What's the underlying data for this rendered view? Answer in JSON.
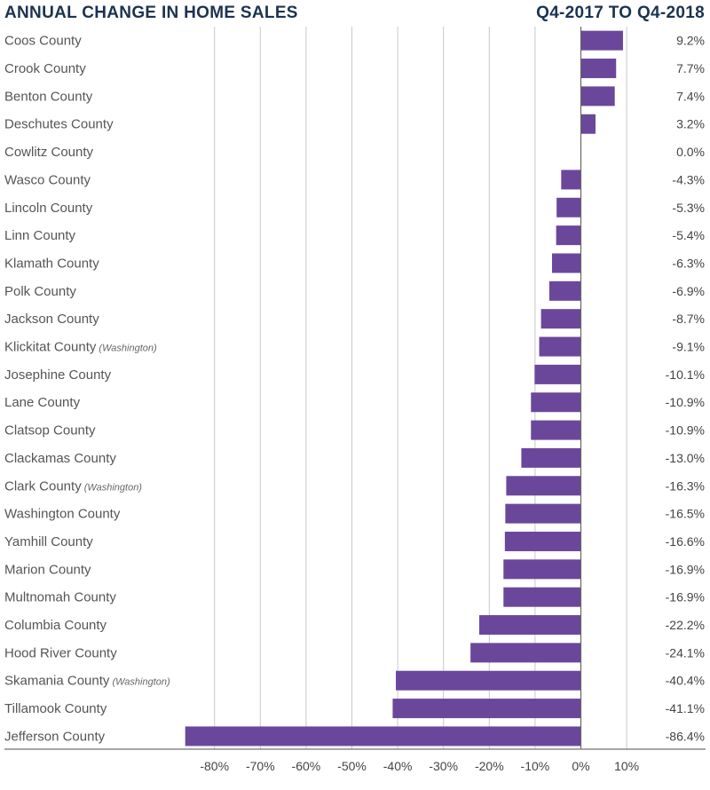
{
  "chart_data": {
    "type": "bar",
    "orientation": "horizontal",
    "title": "ANNUAL CHANGE IN HOME SALES",
    "subtitle": "Q4-2017 TO Q4-2018",
    "categories": [
      {
        "name": "Coos County",
        "note": ""
      },
      {
        "name": "Crook County",
        "note": ""
      },
      {
        "name": "Benton County",
        "note": ""
      },
      {
        "name": "Deschutes County",
        "note": ""
      },
      {
        "name": "Cowlitz County",
        "note": ""
      },
      {
        "name": "Wasco County",
        "note": ""
      },
      {
        "name": "Lincoln County",
        "note": ""
      },
      {
        "name": "Linn County",
        "note": ""
      },
      {
        "name": "Klamath County",
        "note": ""
      },
      {
        "name": "Polk County",
        "note": ""
      },
      {
        "name": "Jackson County",
        "note": ""
      },
      {
        "name": "Klickitat County",
        "note": "(Washington)"
      },
      {
        "name": "Josephine County",
        "note": ""
      },
      {
        "name": "Lane County",
        "note": ""
      },
      {
        "name": "Clatsop County",
        "note": ""
      },
      {
        "name": "Clackamas County",
        "note": ""
      },
      {
        "name": "Clark County",
        "note": "(Washington)"
      },
      {
        "name": "Washington County",
        "note": ""
      },
      {
        "name": "Yamhill County",
        "note": ""
      },
      {
        "name": "Marion County",
        "note": ""
      },
      {
        "name": "Multnomah County",
        "note": ""
      },
      {
        "name": "Columbia County",
        "note": ""
      },
      {
        "name": "Hood River County",
        "note": ""
      },
      {
        "name": "Skamania County",
        "note": "(Washington)"
      },
      {
        "name": "Tillamook County",
        "note": ""
      },
      {
        "name": "Jefferson County",
        "note": ""
      }
    ],
    "values": [
      9.2,
      7.7,
      7.4,
      3.2,
      0.0,
      -4.3,
      -5.3,
      -5.4,
      -6.3,
      -6.9,
      -8.7,
      -9.1,
      -10.1,
      -10.9,
      -10.9,
      -13.0,
      -16.3,
      -16.5,
      -16.6,
      -16.9,
      -16.9,
      -22.2,
      -24.1,
      -40.4,
      -41.1,
      -86.4
    ],
    "value_labels": [
      "9.2%",
      "7.7%",
      "7.4%",
      "3.2%",
      "0.0%",
      "-4.3%",
      "-5.3%",
      "-5.4%",
      "-6.3%",
      "-6.9%",
      "-8.7%",
      "-9.1%",
      "-10.1%",
      "-10.9%",
      "-10.9%",
      "-13.0%",
      "-16.3%",
      "-16.5%",
      "-16.6%",
      "-16.9%",
      "-16.9%",
      "-22.2%",
      "-24.1%",
      "-40.4%",
      "-41.1%",
      "-86.4%"
    ],
    "xticks": [
      -80,
      -70,
      -60,
      -50,
      -40,
      -30,
      -20,
      -10,
      0,
      10
    ],
    "xtick_labels": [
      "-80%",
      "-70%",
      "-60%",
      "-50%",
      "-40%",
      "-30%",
      "-20%",
      "-10%",
      "0%",
      "10%"
    ],
    "xlim": [
      -90,
      10
    ],
    "grid": true,
    "bar_color": "#6b479c",
    "title_color": "#1c3350"
  }
}
